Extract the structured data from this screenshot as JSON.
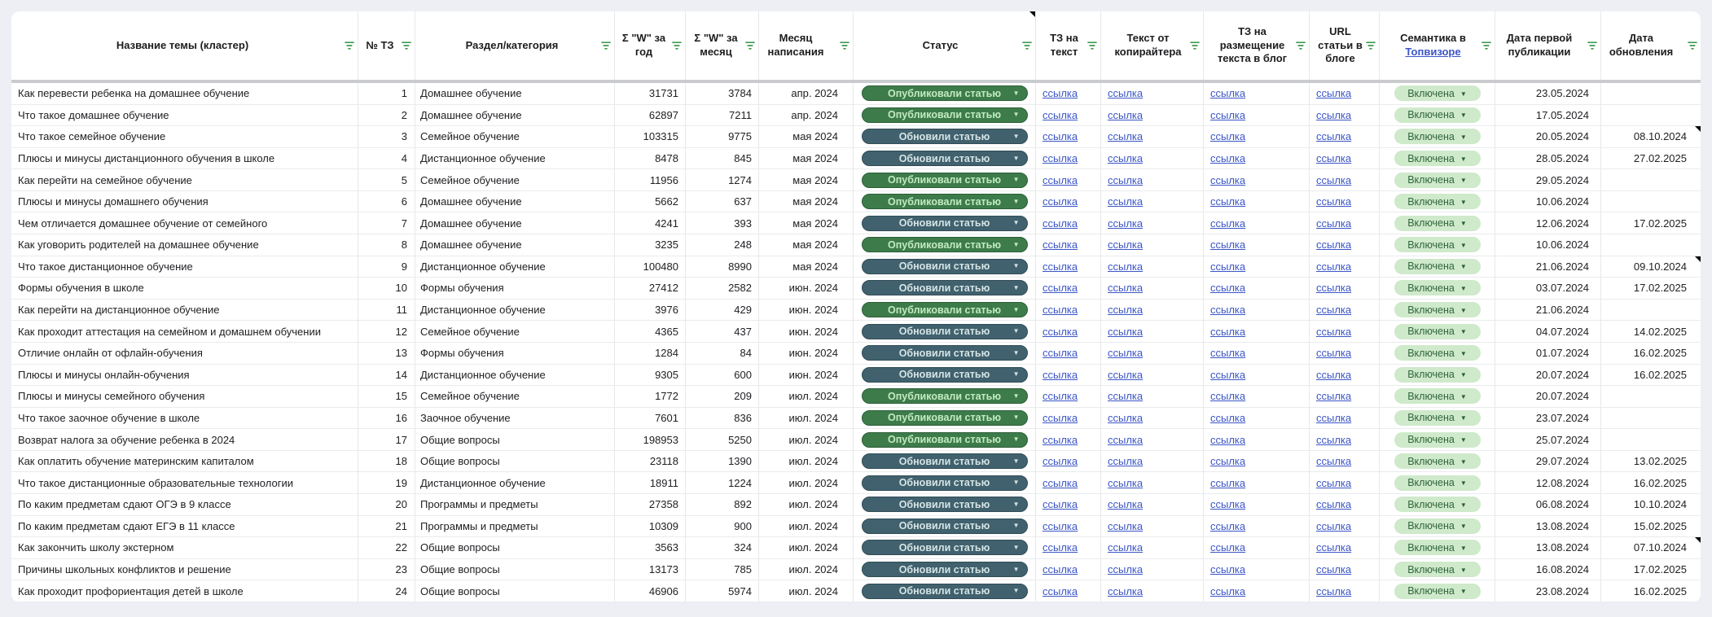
{
  "page": {
    "background": "#edeff4"
  },
  "table": {
    "colors": {
      "filter_icon": "#3d9a50",
      "link": "#3c56c6",
      "divider": "#c9cbcf",
      "status_published_bg": "#3d7c4a",
      "status_published_fg": "#c3eac1",
      "status_updated_bg": "#40616d",
      "status_updated_fg": "#d6e4e6",
      "semantics_badge_bg": "#cfe9cb",
      "semantics_badge_fg": "#31673a"
    },
    "columns": [
      {
        "key": "name",
        "label": "Название темы (кластер)"
      },
      {
        "key": "num",
        "label": "№ ТЗ"
      },
      {
        "key": "category",
        "label": "Раздел/категория"
      },
      {
        "key": "w_year",
        "label": "Σ \"W\" за год"
      },
      {
        "key": "w_month",
        "label": "Σ \"W\" за месяц"
      },
      {
        "key": "month",
        "label": "Месяц написания"
      },
      {
        "key": "status",
        "label": "Статус",
        "comment_marker": true
      },
      {
        "key": "tz_text",
        "label": "ТЗ на текст"
      },
      {
        "key": "copy_text",
        "label": "Текст от копирайтера"
      },
      {
        "key": "tz_blog",
        "label": "ТЗ на размещение текста в блог"
      },
      {
        "key": "url",
        "label": "URL статьи в блоге"
      },
      {
        "key": "semantics",
        "label": "Семантика в Топвизоре",
        "label_prefix": "Семантика в",
        "link_text": "Топвизоре"
      },
      {
        "key": "date_pub",
        "label": "Дата первой публикации"
      },
      {
        "key": "date_upd",
        "label": "Дата обновления"
      }
    ],
    "link_label": "ссылка",
    "semantics_value": "Включена",
    "statuses": {
      "published": {
        "label": "Опубликовали статью"
      },
      "updated": {
        "label": "Обновили статью"
      }
    },
    "rows": [
      {
        "name": "Как перевести ребенка на домашнее обучение",
        "num": 1,
        "category": "Домашнее обучение",
        "w_year": 31731,
        "w_month": 3784,
        "month": "апр. 2024",
        "status": "published",
        "date_pub": "23.05.2024",
        "date_upd": ""
      },
      {
        "name": "Что такое домашнее обучение",
        "num": 2,
        "category": "Домашнее обучение",
        "w_year": 62897,
        "w_month": 7211,
        "month": "апр. 2024",
        "status": "published",
        "date_pub": "17.05.2024",
        "date_upd": ""
      },
      {
        "name": "Что такое семейное обучение",
        "num": 3,
        "category": "Семейное обучение",
        "w_year": 103315,
        "w_month": 9775,
        "month": "мая 2024",
        "status": "updated",
        "date_pub": "20.05.2024",
        "date_upd": "08.10.2024",
        "upd_marker": true
      },
      {
        "name": "Плюсы и минусы дистанционного обучения в школе",
        "num": 4,
        "category": "Дистанционное обучение",
        "w_year": 8478,
        "w_month": 845,
        "month": "мая 2024",
        "status": "updated",
        "date_pub": "28.05.2024",
        "date_upd": "27.02.2025"
      },
      {
        "name": "Как перейти на семейное обучение",
        "num": 5,
        "category": "Семейное обучение",
        "w_year": 11956,
        "w_month": 1274,
        "month": "мая 2024",
        "status": "published",
        "date_pub": "29.05.2024",
        "date_upd": ""
      },
      {
        "name": "Плюсы и минусы домашнего обучения",
        "num": 6,
        "category": "Домашнее обучение",
        "w_year": 5662,
        "w_month": 637,
        "month": "мая 2024",
        "status": "published",
        "date_pub": "10.06.2024",
        "date_upd": ""
      },
      {
        "name": "Чем отличается домашнее обучение от семейного",
        "num": 7,
        "category": "Домашнее обучение",
        "w_year": 4241,
        "w_month": 393,
        "month": "мая 2024",
        "status": "updated",
        "date_pub": "12.06.2024",
        "date_upd": "17.02.2025"
      },
      {
        "name": "Как уговорить родителей на домашнее обучение",
        "num": 8,
        "category": "Домашнее обучение",
        "w_year": 3235,
        "w_month": 248,
        "month": "мая 2024",
        "status": "published",
        "date_pub": "10.06.2024",
        "date_upd": ""
      },
      {
        "name": "Что такое дистанционное обучение",
        "num": 9,
        "category": "Дистанционное обучение",
        "w_year": 100480,
        "w_month": 8990,
        "month": "мая 2024",
        "status": "updated",
        "date_pub": "21.06.2024",
        "date_upd": "09.10.2024",
        "upd_marker": true
      },
      {
        "name": "Формы обучения в школе",
        "num": 10,
        "category": "Формы обучения",
        "w_year": 27412,
        "w_month": 2582,
        "month": "июн. 2024",
        "status": "updated",
        "date_pub": "03.07.2024",
        "date_upd": "17.02.2025"
      },
      {
        "name": "Как перейти на дистанционное обучение",
        "num": 11,
        "category": "Дистанционное обучение",
        "w_year": 3976,
        "w_month": 429,
        "month": "июн. 2024",
        "status": "published",
        "date_pub": "21.06.2024",
        "date_upd": ""
      },
      {
        "name": "Как проходит аттестация на семейном и домашнем обучении",
        "num": 12,
        "category": "Семейное обучение",
        "w_year": 4365,
        "w_month": 437,
        "month": "июн. 2024",
        "status": "updated",
        "date_pub": "04.07.2024",
        "date_upd": "14.02.2025"
      },
      {
        "name": "Отличие онлайн от офлайн-обучения",
        "num": 13,
        "category": "Формы обучения",
        "w_year": 1284,
        "w_month": 84,
        "month": "июн. 2024",
        "status": "updated",
        "date_pub": "01.07.2024",
        "date_upd": "16.02.2025"
      },
      {
        "name": "Плюсы и минусы онлайн-обучения",
        "num": 14,
        "category": "Дистанционное обучение",
        "w_year": 9305,
        "w_month": 600,
        "month": "июн. 2024",
        "status": "updated",
        "date_pub": "20.07.2024",
        "date_upd": "16.02.2025"
      },
      {
        "name": "Плюсы и минусы семейного обучения",
        "num": 15,
        "category": "Семейное обучение",
        "w_year": 1772,
        "w_month": 209,
        "month": "июл. 2024",
        "status": "published",
        "date_pub": "20.07.2024",
        "date_upd": ""
      },
      {
        "name": "Что такое заочное обучение в школе",
        "num": 16,
        "category": "Заочное обучение",
        "w_year": 7601,
        "w_month": 836,
        "month": "июл. 2024",
        "status": "published",
        "date_pub": "23.07.2024",
        "date_upd": ""
      },
      {
        "name": "Возврат налога за обучение ребенка в 2024",
        "num": 17,
        "category": "Общие вопросы",
        "w_year": 198953,
        "w_month": 5250,
        "month": "июл. 2024",
        "status": "published",
        "date_pub": "25.07.2024",
        "date_upd": ""
      },
      {
        "name": "Как оплатить обучение материнским капиталом",
        "num": 18,
        "category": "Общие вопросы",
        "w_year": 23118,
        "w_month": 1390,
        "month": "июл. 2024",
        "status": "updated",
        "date_pub": "29.07.2024",
        "date_upd": "13.02.2025"
      },
      {
        "name": "Что такое дистанционные образовательные технологии",
        "num": 19,
        "category": "Дистанционное обучение",
        "w_year": 18911,
        "w_month": 1224,
        "month": "июл. 2024",
        "status": "updated",
        "date_pub": "12.08.2024",
        "date_upd": "16.02.2025"
      },
      {
        "name": "По каким предметам сдают ОГЭ в 9 классе",
        "num": 20,
        "category": "Программы и предметы",
        "w_year": 27358,
        "w_month": 892,
        "month": "июл. 2024",
        "status": "updated",
        "date_pub": "06.08.2024",
        "date_upd": "10.10.2024"
      },
      {
        "name": "По каким предметам сдают ЕГЭ в 11 классе",
        "num": 21,
        "category": "Программы и предметы",
        "w_year": 10309,
        "w_month": 900,
        "month": "июл. 2024",
        "status": "updated",
        "date_pub": "13.08.2024",
        "date_upd": "15.02.2025"
      },
      {
        "name": "Как закончить школу экстерном",
        "num": 22,
        "category": "Общие вопросы",
        "w_year": 3563,
        "w_month": 324,
        "month": "июл. 2024",
        "status": "updated",
        "date_pub": "13.08.2024",
        "date_upd": "07.10.2024",
        "upd_marker": true
      },
      {
        "name": "Причины школьных конфликтов и решение",
        "num": 23,
        "category": "Общие вопросы",
        "w_year": 13173,
        "w_month": 785,
        "month": "июл. 2024",
        "status": "updated",
        "date_pub": "16.08.2024",
        "date_upd": "17.02.2025"
      },
      {
        "name": "Как проходит профориентация детей в школе",
        "num": 24,
        "category": "Общие вопросы",
        "w_year": 46906,
        "w_month": 5974,
        "month": "июл. 2024",
        "status": "updated",
        "date_pub": "23.08.2024",
        "date_upd": "16.02.2025"
      }
    ]
  }
}
